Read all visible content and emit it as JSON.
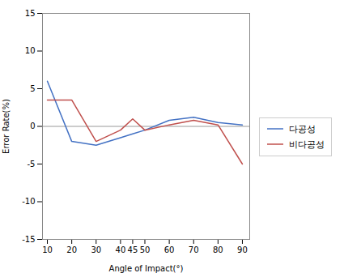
{
  "chart_data": {
    "type": "line",
    "x": [
      10,
      20,
      30,
      40,
      45,
      50,
      60,
      70,
      80,
      90
    ],
    "series": [
      {
        "name": "다공성",
        "color": "#4472C4",
        "values": [
          6.0,
          -2.0,
          -2.5,
          -1.5,
          -1.0,
          -0.5,
          0.8,
          1.2,
          0.5,
          0.2
        ]
      },
      {
        "name": "비다공성",
        "color": "#C0504D",
        "values": [
          3.5,
          3.5,
          -2.0,
          -0.5,
          1.0,
          -0.5,
          0.2,
          0.8,
          0.2,
          -5.0
        ]
      }
    ],
    "x_label": "Angle of Impact(°)",
    "y_label": "Error Rate(%)",
    "xlim": [
      8,
      93
    ],
    "xticks": [
      10,
      20,
      30,
      40,
      45,
      50,
      60,
      70,
      80,
      90
    ],
    "ylim": [
      -15,
      15
    ],
    "yticks": [
      -15,
      -10,
      -5,
      0,
      5,
      10,
      15
    ],
    "legend": "right"
  }
}
